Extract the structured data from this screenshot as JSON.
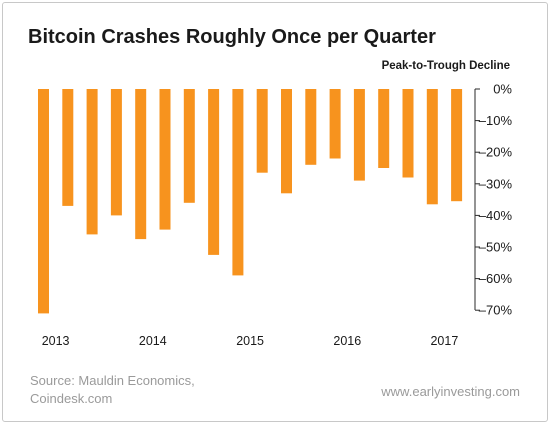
{
  "chart_data": {
    "type": "bar",
    "title": "Bitcoin Crashes Roughly Once per Quarter",
    "ylabel": "Peak-to-Trough Decline",
    "values": [
      -71,
      -37,
      -46,
      -40,
      -47.5,
      -44.5,
      -36,
      -52.5,
      -59,
      -26.5,
      -33,
      -24,
      -22,
      -29,
      -25,
      -28,
      -36.5,
      -35.5
    ],
    "ylim": [
      -70,
      0
    ],
    "yticks": [
      0,
      -10,
      -20,
      -30,
      -40,
      -50,
      -60,
      -70
    ],
    "ytick_labels": [
      "0%",
      "–10%",
      "–20%",
      "–30%",
      "–40%",
      "–50%",
      "–60%",
      "–70%"
    ],
    "xtick_labels": [
      "2013",
      "2014",
      "2015",
      "2016",
      "2017"
    ],
    "xtick_after_bar": [
      0,
      4,
      8,
      12,
      16
    ],
    "grid": false,
    "bar_color": "#f7931e"
  },
  "footer": {
    "source_line1": "Source: Mauldin Economics,",
    "source_line2": "Coindesk.com",
    "website": "www.earlyinvesting.com"
  },
  "colors": {
    "bar": "#f7931e",
    "axis": "#2a2a2a",
    "text_gray": "#9a9a9a"
  }
}
